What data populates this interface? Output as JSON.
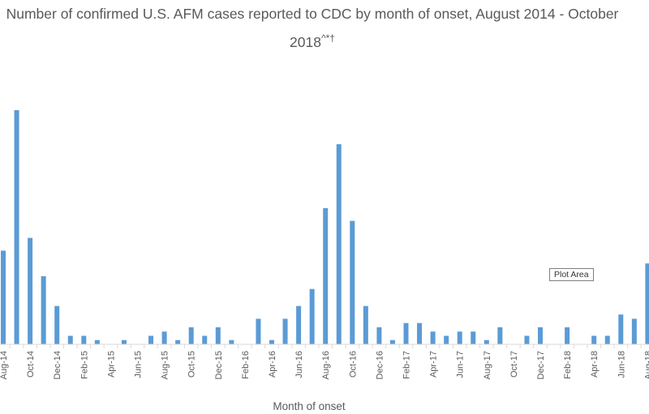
{
  "chart_data": {
    "type": "bar",
    "title": "Number of confirmed U.S. AFM cases reported to CDC by month of onset, August 2014 - October 2018",
    "title_superscript": "^*†",
    "xlabel": "Month of onset",
    "ylabel": "",
    "ylim": [
      0,
      55
    ],
    "grid": false,
    "legend": "none",
    "bar_color": "#5b9bd5",
    "categories": [
      "Aug-14",
      "Sep-14",
      "Oct-14",
      "Nov-14",
      "Dec-14",
      "Jan-15",
      "Feb-15",
      "Mar-15",
      "Apr-15",
      "May-15",
      "Jun-15",
      "Jul-15",
      "Aug-15",
      "Sep-15",
      "Oct-15",
      "Nov-15",
      "Dec-15",
      "Jan-16",
      "Feb-16",
      "Mar-16",
      "Apr-16",
      "May-16",
      "Jun-16",
      "Jul-16",
      "Aug-16",
      "Sep-16",
      "Oct-16",
      "Nov-16",
      "Dec-16",
      "Jan-17",
      "Feb-17",
      "Mar-17",
      "Apr-17",
      "May-17",
      "Jun-17",
      "Jul-17",
      "Aug-17",
      "Sep-17",
      "Oct-17",
      "Nov-17",
      "Dec-17",
      "Jan-18",
      "Feb-18",
      "Mar-18",
      "Apr-18",
      "May-18",
      "Jun-18",
      "Jul-18",
      "Aug-18"
    ],
    "tick_labels": [
      "Aug-14",
      "Oct-14",
      "Dec-14",
      "Feb-15",
      "Apr-15",
      "Jun-15",
      "Aug-15",
      "Oct-15",
      "Dec-15",
      "Feb-16",
      "Apr-16",
      "Jun-16",
      "Aug-16",
      "Oct-16",
      "Dec-16",
      "Feb-17",
      "Apr-17",
      "Jun-17",
      "Aug-17",
      "Oct-17",
      "Dec-17",
      "Feb-18",
      "Apr-18",
      "Jun-18",
      "Aug-18"
    ],
    "values": [
      22,
      55,
      25,
      16,
      9,
      2,
      2,
      1,
      0,
      1,
      0,
      2,
      3,
      1,
      4,
      2,
      4,
      1,
      0,
      6,
      1,
      6,
      9,
      13,
      32,
      47,
      29,
      9,
      4,
      1,
      5,
      5,
      3,
      2,
      3,
      3,
      1,
      4,
      0,
      2,
      4,
      0,
      4,
      0,
      2,
      2,
      7,
      6,
      19
    ]
  },
  "tooltip": {
    "label": "Plot Area"
  }
}
